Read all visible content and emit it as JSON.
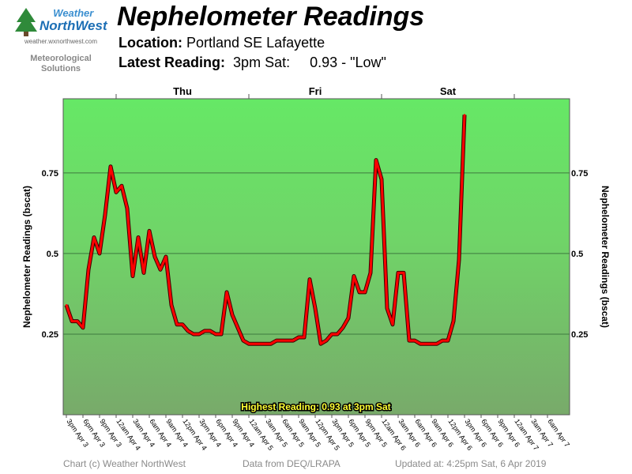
{
  "logo": {
    "word1": "Weather",
    "word2": "NorthWest",
    "url": "weather.wxnorthwest.com",
    "tagline1": "Meteorological",
    "tagline2": "Solutions"
  },
  "header": {
    "title": "Nephelometer Readings",
    "location_label": "Location:",
    "location_value": "Portland SE Lafayette",
    "latest_label": "Latest Reading:",
    "latest_time": "3pm Sat:",
    "latest_value": "0.93 - \"Low\""
  },
  "footer": {
    "copyright": "Chart (c) Weather NorthWest",
    "source": "Data from DEQ/LRAPA",
    "updated": "Updated at: 4:25pm Sat, 6 Apr 2019"
  },
  "colors": {
    "line": "#ff0000",
    "band_top": "#66e866",
    "band_bottom": "#78aa6a"
  },
  "chart_data": {
    "type": "line",
    "ylabel": "Nephelometer Readings (bscat)",
    "ylim": [
      0,
      0.98
    ],
    "yticks": [
      0.25,
      0.5,
      0.75
    ],
    "ytick_labels": [
      "0.25",
      "0.5",
      "0.75"
    ],
    "grid": true,
    "day_labels": [
      {
        "label": "Thu",
        "at_hour": 21
      },
      {
        "label": "Fri",
        "at_hour": 45
      },
      {
        "label": "Sat",
        "at_hour": 69
      }
    ],
    "day_boundaries_hours": [
      9,
      33,
      57,
      81
    ],
    "x_tick_labels": [
      "3pm Apr 3",
      "6pm Apr 3",
      "9pm Apr 3",
      "12am Apr 4",
      "3am Apr 4",
      "6am Apr 4",
      "9am Apr 4",
      "12pm Apr 4",
      "3pm Apr 4",
      "6pm Apr 4",
      "9pm Apr 4",
      "12am Apr 5",
      "3am Apr 5",
      "6am Apr 5",
      "9am Apr 5",
      "12pm Apr 5",
      "3pm Apr 5",
      "6pm Apr 5",
      "9pm Apr 5",
      "12am Apr 6",
      "3am Apr 6",
      "6am Apr 6",
      "9am Apr 6",
      "12pm Apr 6",
      "3pm Apr 6",
      "6pm Apr 6",
      "9pm Apr 6",
      "12am Apr 7",
      "3am Apr 7",
      "6am Apr 7"
    ],
    "annotation": "Highest Reading: 0.93 at 3pm Sat",
    "series": [
      {
        "values": [
          0.34,
          0.29,
          0.29,
          0.27,
          0.45,
          0.55,
          0.5,
          0.62,
          0.77,
          0.69,
          0.71,
          0.64,
          0.43,
          0.55,
          0.44,
          0.57,
          0.49,
          0.45,
          0.49,
          0.34,
          0.28,
          0.28,
          0.26,
          0.25,
          0.25,
          0.26,
          0.26,
          0.25,
          0.25,
          0.38,
          0.31,
          0.27,
          0.23,
          0.22,
          0.22,
          0.22,
          0.22,
          0.22,
          0.23,
          0.23,
          0.23,
          0.23,
          0.24,
          0.24,
          0.42,
          0.33,
          0.22,
          0.23,
          0.25,
          0.25,
          0.27,
          0.3,
          0.43,
          0.38,
          0.38,
          0.44,
          0.79,
          0.73,
          0.33,
          0.28,
          0.44,
          0.44,
          0.23,
          0.23,
          0.22,
          0.22,
          0.22,
          0.22,
          0.23,
          0.23,
          0.29,
          0.48,
          0.93
        ]
      }
    ]
  }
}
